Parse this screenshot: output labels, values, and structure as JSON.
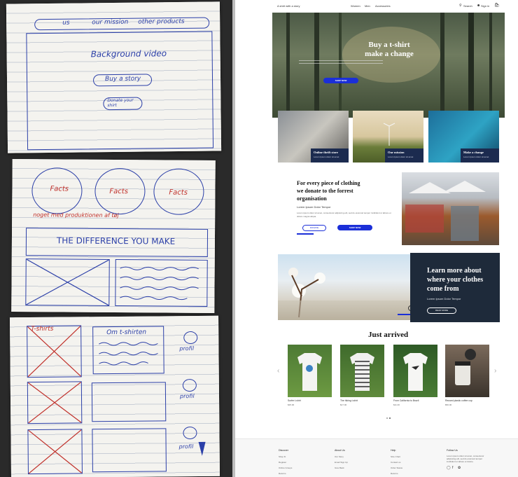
{
  "sketch": {
    "page1": {
      "nav": [
        "us",
        "our mission",
        "other products"
      ],
      "bg": "Background video",
      "btn1": "Buy a story",
      "btn2": "Donate your shirt"
    },
    "page2": {
      "facts": [
        "Facts",
        "Facts",
        "Facts"
      ],
      "note": "noget med produktionen af tøj",
      "banner": "THE DIFFERENCE YOU MAKE"
    },
    "page3": {
      "tshirts": "T-shirts",
      "om": "Om t-shirten",
      "profil": [
        "profil",
        "profil",
        "profil"
      ]
    }
  },
  "site": {
    "brand": "A shirt with a story",
    "nav": [
      "Women",
      "Men",
      "Accessories"
    ],
    "search": "Search",
    "signin": "Sign in",
    "hero": {
      "title1": "Buy a t-shirt",
      "title2": "make a change",
      "btn": "SHOP NOW"
    },
    "cards": [
      {
        "title": "Online thrift store",
        "sub": "Lorem Ipsum dolor sit amet"
      },
      {
        "title": "Our mission",
        "sub": "Lorem Ipsum dolor sit amet"
      },
      {
        "title": "Make a change",
        "sub": "Lorem Ipsum dolor sit amet"
      }
    ],
    "donate": {
      "title1": "For every piece of clothing",
      "title2": "we donate to the forrest",
      "title3": "organisation",
      "sub": "Lorem Ipsum Dolor Tempor",
      "body": "Lorem ipsum dolor sit amet, consectetur adipiscing elit, sed do eiusmod tempor incididunt ut labore et dolore magna aliqua.",
      "btn_out": "DONATE",
      "btn_blue": "SHOP NOW"
    },
    "learn": {
      "t1": "Learn more about",
      "t2": "where your clothes",
      "t3": "come from",
      "sub": "Lorem Ipsum Dolor Tempor",
      "btn": "READ MORE"
    },
    "arrived": {
      "title": "Just arrived",
      "items": [
        {
          "name": "Surfer t-shirt",
          "price": "$25.00"
        },
        {
          "name": "The hiking t-shirt",
          "price": "$17.00"
        },
        {
          "name": "From California to Brazil",
          "price": "$11.00"
        },
        {
          "name": "Reused plastic coffee cup",
          "price": "$50.00"
        }
      ]
    },
    "footer": {
      "cols": [
        {
          "title": "Discover",
          "links": [
            "Shop fit",
            "Register",
            "Online Groups",
            "Returns"
          ]
        },
        {
          "title": "About Us",
          "links": [
            "Our Story",
            "Email Sign Up",
            "Give Back"
          ]
        },
        {
          "title": "Help",
          "links": [
            "Size Chart",
            "Contact us",
            "Order Status",
            "Returns"
          ]
        },
        {
          "title": "Follow Us",
          "text": "Lorem ipsum dolor sit amet, consectetur adipiscing elit, sed do eiusmod tempor incididunt ut labore et dolore."
        }
      ]
    }
  }
}
